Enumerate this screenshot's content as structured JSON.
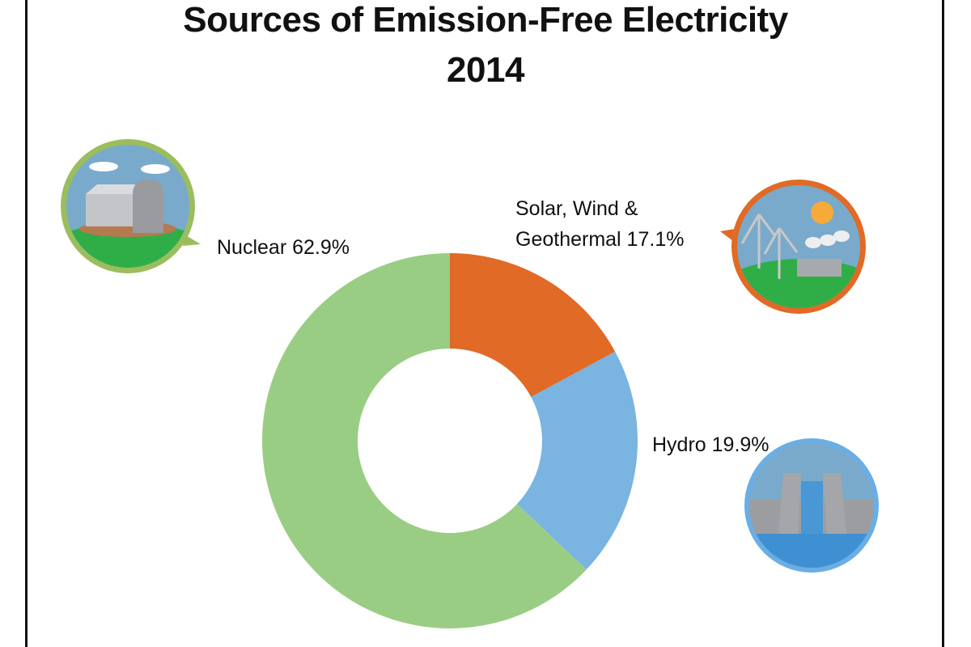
{
  "chart_data": {
    "type": "pie",
    "variant": "donut",
    "title": "Sources of Emission-Free Electricity",
    "subtitle": "2014",
    "start": "top",
    "direction": "clockwise",
    "slices": [
      {
        "name": "Solar, Wind & Geothermal",
        "value": 17.1,
        "label_line1": "Solar, Wind &",
        "label_line2": "Geothermal 17.1%",
        "color": "#e06a26",
        "icon": "wind-solar-geothermal-icon"
      },
      {
        "name": "Hydro",
        "value": 19.9,
        "label": "Hydro 19.9%",
        "color": "#7ab4e0",
        "icon": "hydro-dam-icon"
      },
      {
        "name": "Nuclear",
        "value": 62.9,
        "label": "Nuclear 62.9%",
        "color": "#9acd84",
        "icon": "nuclear-plant-icon"
      }
    ]
  }
}
